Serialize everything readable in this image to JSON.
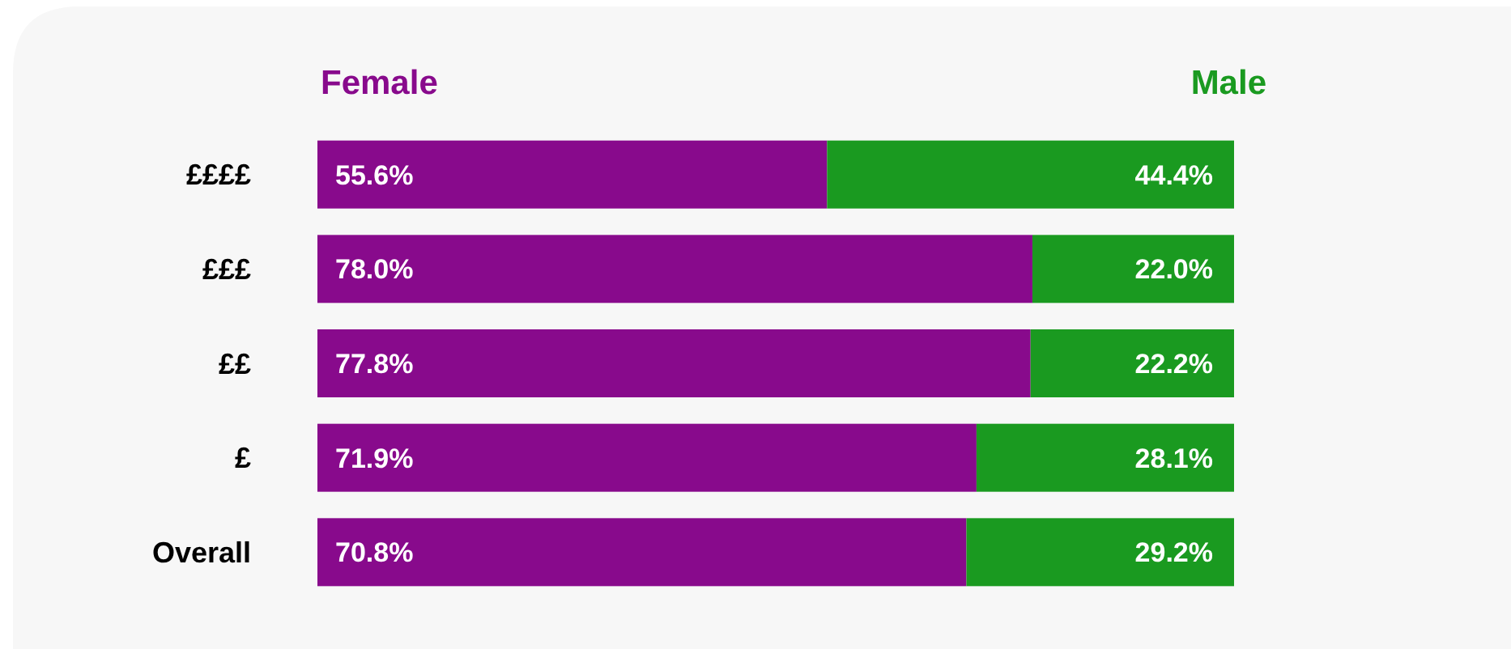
{
  "chart_data": {
    "type": "bar",
    "orientation": "horizontal",
    "stacked": true,
    "categories": [
      "££££",
      "£££",
      "££",
      "£",
      "Overall"
    ],
    "series": [
      {
        "name": "Female",
        "color": "#880a8c",
        "values": [
          55.6,
          78.0,
          77.8,
          71.9,
          70.8
        ],
        "value_labels": [
          "55.6%",
          "78.0%",
          "77.8%",
          "71.9%",
          "70.8%"
        ]
      },
      {
        "name": "Male",
        "color": "#1a9a20",
        "values": [
          44.4,
          22.0,
          22.2,
          28.1,
          29.2
        ],
        "value_labels": [
          "44.4%",
          "22.0%",
          "22.2%",
          "28.1%",
          "29.2%"
        ]
      }
    ],
    "legend": "top",
    "tick_labels": "y"
  }
}
